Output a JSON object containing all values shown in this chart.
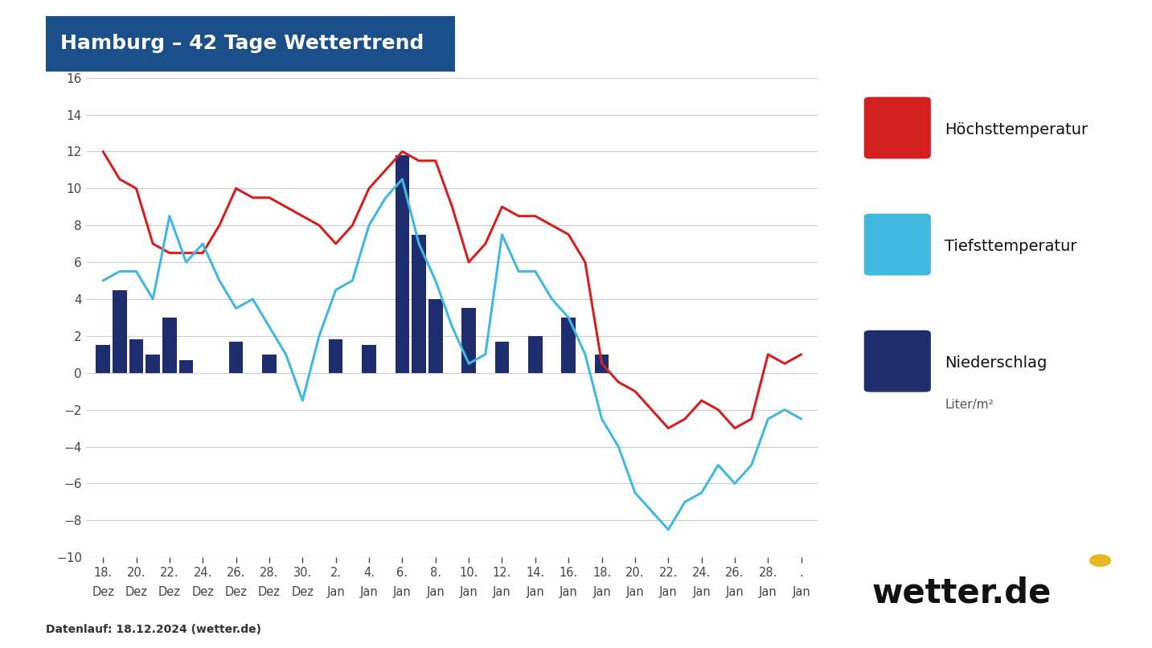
{
  "title": "Hamburg – 42 Tage Wettertrend",
  "title_bg": "#1b4f8a",
  "title_color": "white",
  "ylim": [
    -10,
    16
  ],
  "yticks": [
    -10,
    -8,
    -6,
    -4,
    -2,
    0,
    2,
    4,
    6,
    8,
    10,
    12,
    14,
    16
  ],
  "background_color": "#ffffff",
  "footnote": "Datenlauf: 18.12.2024 (wetter.de)",
  "x_day_labels": [
    "18.",
    "20.",
    "22.",
    "24.",
    "26.",
    "28.",
    "30.",
    "2.",
    "4.",
    "6.",
    "8.",
    "10.",
    "12.",
    "14.",
    "16.",
    "18.",
    "20.",
    "22.",
    "24.",
    "26.",
    "28.",
    "."
  ],
  "x_month_labels": [
    "Dez",
    "Dez",
    "Dez",
    "Dez",
    "Dez",
    "Dez",
    "Dez",
    "Jan",
    "Jan",
    "Jan",
    "Jan",
    "Jan",
    "Jan",
    "Jan",
    "Jan",
    "Jan",
    "Jan",
    "Jan",
    "Jan",
    "Jan",
    "Jan",
    "Jan"
  ],
  "x_tick_pos": [
    0,
    2,
    4,
    6,
    8,
    10,
    12,
    14,
    16,
    18,
    20,
    22,
    24,
    26,
    28,
    30,
    32,
    34,
    36,
    38,
    40,
    42
  ],
  "hochst_x": [
    0,
    1,
    2,
    3,
    4,
    5,
    6,
    7,
    8,
    9,
    10,
    11,
    12,
    13,
    14,
    15,
    16,
    17,
    18,
    19,
    20,
    21,
    22,
    23,
    24,
    25,
    26,
    27,
    28,
    29,
    30,
    31,
    32,
    33,
    34,
    35,
    36,
    37,
    38,
    39,
    40,
    41,
    42
  ],
  "hochst_y": [
    12,
    10.5,
    10,
    7,
    6.5,
    6.5,
    6.5,
    8,
    10,
    9.5,
    9.5,
    9,
    8.5,
    8,
    7,
    8,
    10,
    11,
    12,
    11.5,
    11.5,
    9,
    6,
    7,
    9,
    8.5,
    8.5,
    8,
    7.5,
    6,
    0.5,
    -0.5,
    -1,
    -2,
    -3,
    -2.5,
    -1.5,
    -2,
    -3,
    -2.5,
    1,
    0.5,
    1
  ],
  "tief_x": [
    0,
    1,
    2,
    3,
    4,
    5,
    6,
    7,
    8,
    9,
    10,
    11,
    12,
    13,
    14,
    15,
    16,
    17,
    18,
    19,
    20,
    21,
    22,
    23,
    24,
    25,
    26,
    27,
    28,
    29,
    30,
    31,
    32,
    33,
    34,
    35,
    36,
    37,
    38,
    39,
    40,
    41,
    42
  ],
  "tief_y": [
    5,
    5.5,
    5.5,
    4,
    8.5,
    6,
    7,
    5,
    3.5,
    4,
    2.5,
    1,
    -1.5,
    2,
    4.5,
    5,
    8,
    9.5,
    10.5,
    7,
    5,
    2.5,
    0.5,
    1,
    7.5,
    5.5,
    5.5,
    4,
    3,
    1,
    -2.5,
    -4,
    -6.5,
    -7.5,
    -8.5,
    -7,
    -6.5,
    -5,
    -6,
    -5,
    -2.5,
    -2,
    -2.5
  ],
  "prec_x": [
    0,
    1,
    2,
    3,
    4,
    5,
    8,
    10,
    14,
    16,
    18,
    19,
    20,
    22,
    24,
    26,
    28,
    30
  ],
  "prec_y": [
    1.5,
    4.5,
    1.8,
    1.0,
    3.0,
    0.7,
    1.7,
    1.0,
    1.8,
    1.5,
    11.8,
    7.5,
    4.0,
    3.5,
    1.7,
    2.0,
    3.0,
    1.0
  ],
  "bar_color": "#1e2d6e",
  "hochst_color": "#d42020",
  "tief_color": "#40b8e0",
  "grid_color": "#cccccc",
  "legend_hochst": "Höchsttemperatur",
  "legend_tief": "Tiefsttemperatur",
  "legend_niederschlag": "Niederschlag",
  "legend_niederschlag_sub": "Liter/m²",
  "wetterde_text": "wetter.de",
  "dot_color": "#e8b820"
}
